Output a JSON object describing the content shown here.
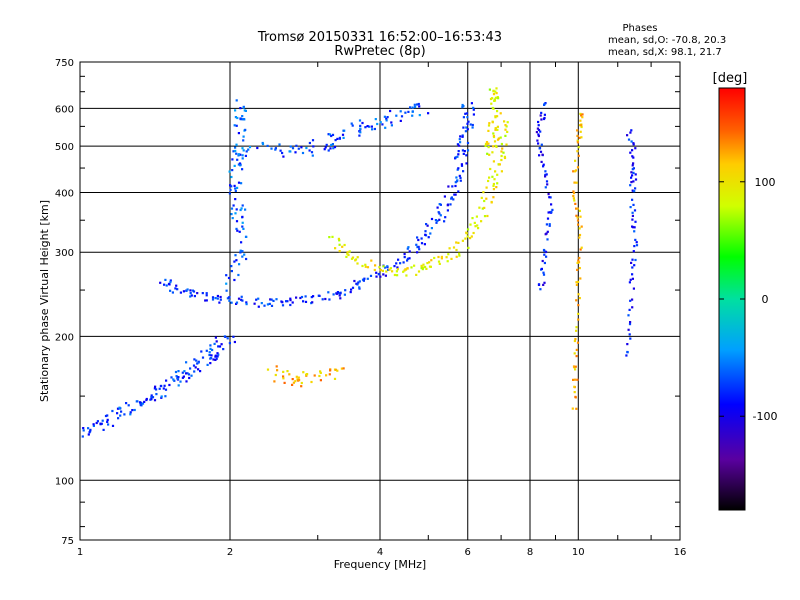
{
  "chart_data": {
    "type": "scatter",
    "title": "Tromsø 20150331 16:52:00–16:53:43",
    "subtitle": "RwPretec (8p)",
    "xlabel": "Frequency [MHz]",
    "ylabel": "Stationary phase Virtual Height [km]",
    "x_scale": "log",
    "y_scale": "log",
    "xlim": [
      1,
      16
    ],
    "ylim": [
      75,
      750
    ],
    "x_ticks": [
      1,
      2,
      4,
      6,
      8,
      10,
      16
    ],
    "x_tick_labels": [
      "1",
      "2",
      "4",
      "6",
      "8",
      "10",
      "16"
    ],
    "y_ticks": [
      75,
      100,
      200,
      300,
      400,
      500,
      600,
      750
    ],
    "y_tick_labels": [
      "75",
      "100",
      "200",
      "300",
      "400",
      "500",
      "600",
      "750"
    ],
    "grid": true,
    "phases_box": {
      "title": "Phases",
      "line1": "mean, sd,O: -70.8, 20.3",
      "line2": "mean, sd,X:  98.1, 21.7"
    },
    "colorbar": {
      "label": "[deg]",
      "range": [
        -180,
        180
      ],
      "tick_values": [
        100,
        0,
        -100
      ],
      "tick_labels": [
        "100",
        "0",
        "-100"
      ]
    },
    "traces": [
      {
        "mode": "O",
        "phase": -75,
        "spread_f": 0.04,
        "spread_h": 0.03,
        "points": [
          [
            1.0,
            125
          ],
          [
            1.1,
            130
          ],
          [
            1.2,
            138
          ],
          [
            1.3,
            145
          ],
          [
            1.4,
            150
          ],
          [
            1.5,
            158
          ],
          [
            1.6,
            165
          ],
          [
            1.7,
            172
          ],
          [
            1.8,
            180
          ],
          [
            1.9,
            190
          ],
          [
            2.0,
            200
          ]
        ]
      },
      {
        "mode": "O",
        "phase": -80,
        "spread_f": 0.03,
        "spread_h": 0.02,
        "points": [
          [
            1.45,
            260
          ],
          [
            1.6,
            250
          ],
          [
            1.8,
            242
          ],
          [
            2.0,
            238
          ],
          [
            2.3,
            235
          ],
          [
            2.6,
            236
          ],
          [
            3.0,
            240
          ],
          [
            3.4,
            248
          ],
          [
            3.8,
            262
          ],
          [
            4.2,
            280
          ],
          [
            4.6,
            300
          ],
          [
            5.0,
            330
          ],
          [
            5.3,
            360
          ],
          [
            5.6,
            400
          ],
          [
            5.8,
            450
          ],
          [
            5.9,
            500
          ],
          [
            6.0,
            560
          ],
          [
            6.0,
            620
          ]
        ]
      },
      {
        "mode": "O",
        "phase": -65,
        "spread_f": 0.03,
        "spread_h": 0.05,
        "points": [
          [
            2.0,
            260
          ],
          [
            2.1,
            300
          ],
          [
            2.1,
            350
          ],
          [
            2.05,
            400
          ],
          [
            2.05,
            450
          ],
          [
            2.1,
            500
          ],
          [
            2.1,
            560
          ],
          [
            2.1,
            620
          ]
        ]
      },
      {
        "mode": "O",
        "phase": -70,
        "spread_f": 0.05,
        "spread_h": 0.03,
        "points": [
          [
            2.2,
            500
          ],
          [
            2.6,
            490
          ],
          [
            3.0,
            495
          ],
          [
            3.3,
            520
          ],
          [
            3.6,
            540
          ],
          [
            4.0,
            560
          ],
          [
            4.5,
            585
          ],
          [
            5.0,
            600
          ]
        ]
      },
      {
        "mode": "X",
        "phase": 95,
        "spread_f": 0.03,
        "spread_h": 0.02,
        "points": [
          [
            3.2,
            320
          ],
          [
            3.5,
            295
          ],
          [
            4.0,
            275
          ],
          [
            4.5,
            272
          ],
          [
            5.0,
            280
          ],
          [
            5.5,
            295
          ],
          [
            6.0,
            320
          ],
          [
            6.4,
            360
          ],
          [
            6.7,
            410
          ],
          [
            6.9,
            460
          ],
          [
            7.0,
            520
          ],
          [
            7.0,
            580
          ]
        ]
      },
      {
        "mode": "X",
        "phase": 120,
        "spread_f": 0.04,
        "spread_h": 0.03,
        "points": [
          [
            2.4,
            170
          ],
          [
            2.7,
            160
          ],
          [
            3.0,
            165
          ],
          [
            3.3,
            170
          ]
        ]
      },
      {
        "mode": "X",
        "phase": 90,
        "spread_f": 0.02,
        "spread_h": 0.02,
        "points": [
          [
            6.6,
            480
          ],
          [
            6.7,
            540
          ],
          [
            6.8,
            620
          ],
          [
            6.7,
            660
          ]
        ]
      },
      {
        "mode": "X",
        "phase": 115,
        "spread_f": 0.01,
        "spread_h": 0.03,
        "points": [
          [
            9.8,
            140
          ],
          [
            9.9,
            180
          ],
          [
            10.0,
            250
          ],
          [
            10.1,
            330
          ],
          [
            9.8,
            400
          ],
          [
            10.0,
            520
          ],
          [
            10.2,
            600
          ]
        ]
      },
      {
        "mode": "O",
        "phase": -90,
        "spread_f": 0.01,
        "spread_h": 0.03,
        "points": [
          [
            8.4,
            250
          ],
          [
            8.6,
            300
          ],
          [
            8.8,
            370
          ],
          [
            8.5,
            460
          ],
          [
            8.3,
            540
          ],
          [
            8.6,
            620
          ]
        ]
      },
      {
        "mode": "O",
        "phase": -85,
        "spread_f": 0.01,
        "spread_h": 0.04,
        "points": [
          [
            12.5,
            180
          ],
          [
            12.8,
            250
          ],
          [
            13.0,
            320
          ],
          [
            12.8,
            400
          ],
          [
            13.0,
            460
          ],
          [
            12.6,
            540
          ]
        ]
      }
    ]
  }
}
